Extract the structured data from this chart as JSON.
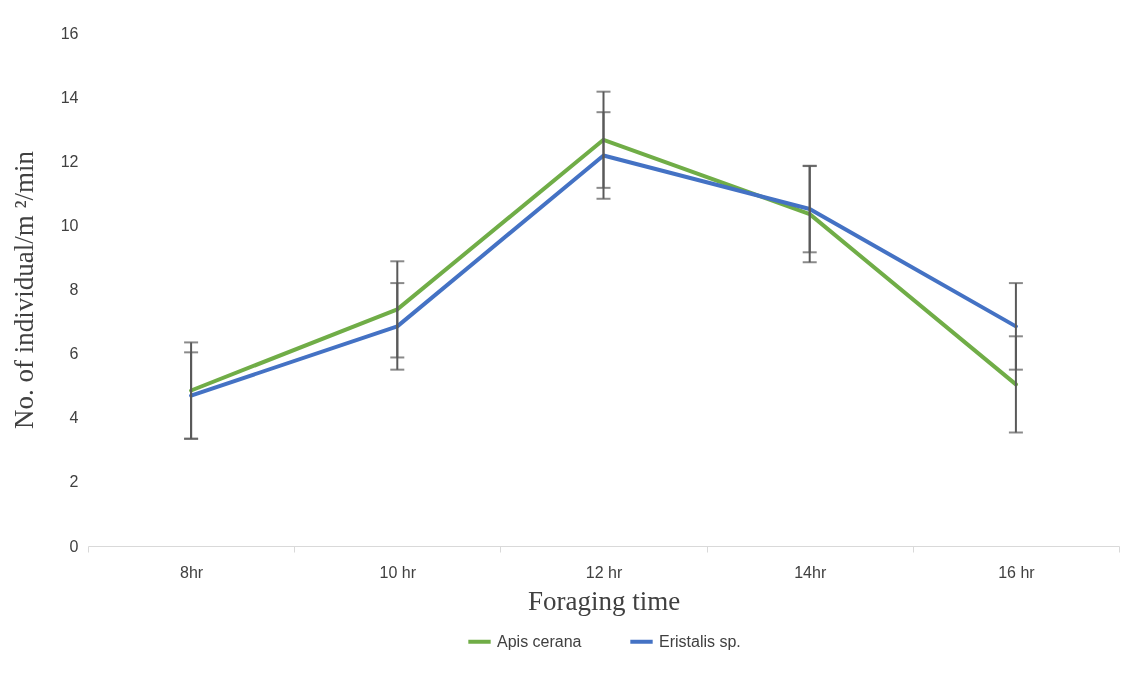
{
  "chart_data": {
    "type": "line",
    "xlabel": "Foraging time",
    "ylabel": "No. of individual/m ²/min",
    "categories": [
      "8hr",
      "10 hr",
      "12 hr",
      "14hr",
      "16 hr"
    ],
    "series": [
      {
        "name": "Apis cerana",
        "color": "#70ad47",
        "values": [
          4.85,
          7.38,
          12.67,
          10.35,
          5.04
        ],
        "errors": [
          1.5,
          1.5,
          1.5,
          1.5,
          1.5
        ]
      },
      {
        "name": "Eristalis sp.",
        "color": "#4472c4",
        "values": [
          4.69,
          6.85,
          12.18,
          10.51,
          6.85
        ],
        "errors": [
          1.35,
          1.35,
          1.35,
          1.35,
          1.35
        ]
      }
    ],
    "ylim": [
      0,
      16
    ],
    "yticks": [
      0,
      2,
      4,
      6,
      8,
      10,
      12,
      14,
      16
    ],
    "grid": false,
    "legend": "bottom"
  }
}
